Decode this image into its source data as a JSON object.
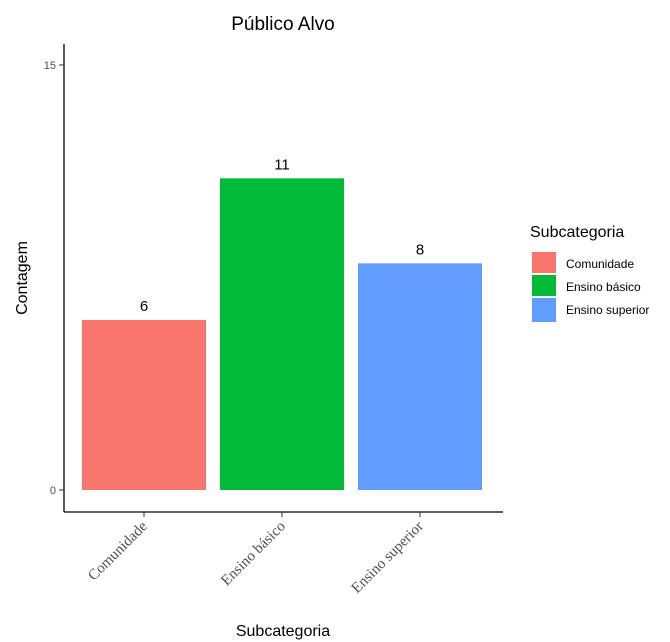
{
  "chart_data": {
    "type": "bar",
    "title": "Público Alvo",
    "xlabel": "Subcategoria",
    "ylabel": "Contagem",
    "categories": [
      "Comunidade",
      "Ensino básico",
      "Ensino superior"
    ],
    "values": [
      6,
      11,
      8
    ],
    "colors": [
      "#F8766D",
      "#00BA38",
      "#619CFF"
    ],
    "ylim": [
      0,
      15
    ],
    "yticks": [
      0,
      15
    ],
    "grid": false,
    "legend": {
      "title": "Subcategoria",
      "placement": "right",
      "entries": [
        "Comunidade",
        "Ensino básico",
        "Ensino superior"
      ]
    }
  }
}
